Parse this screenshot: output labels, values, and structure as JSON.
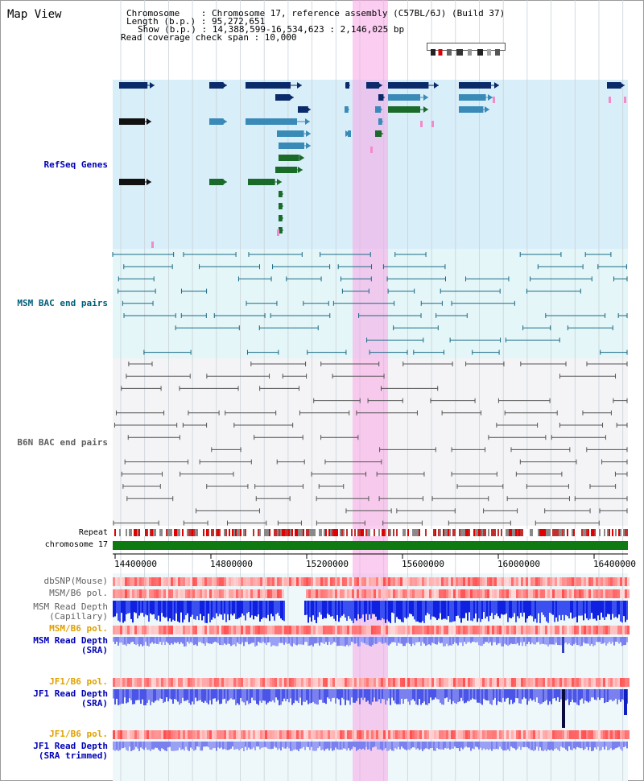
{
  "title": "Map View",
  "info": {
    "chromosome": "Chromosome    : Chromosome 17, reference assembly (C57BL/6J) (Build 37)",
    "length": "Length (b.p.) : 95,272,651",
    "show": "Show (b.p.) : 14,388,599-16,534,623 : 2,146,025 bp",
    "span": "Read coverage check span : 10,000"
  },
  "tracks": {
    "refseq": "RefSeq Genes",
    "msm_bac": "MSM BAC end pairs",
    "b6n_bac": "B6N BAC end pairs",
    "repeat": "Repeat",
    "chromosome": "chromosome 17",
    "dbsnp": "dbSNP(Mouse)",
    "msm_pol": "MSM/B6 pol.",
    "msm_depth_cap": "MSM Read Depth\n(Capillary)",
    "msm_pol2": "MSM/B6 pol.",
    "msm_depth_sra": "MSM Read Depth\n(SRA)",
    "jf1_pol": "JF1/B6 pol.",
    "jf1_depth_sra": "JF1 Read Depth\n(SRA)",
    "jf1_pol2": "JF1/B6 pol.",
    "jf1_depth_trim": "JF1 Read Depth\n(SRA trimmed)"
  },
  "axis": {
    "ticks": [
      "14400000",
      "14800000",
      "15200000",
      "15600000",
      "16000000",
      "16400000"
    ]
  },
  "colors": {
    "refseq_bg": "#d8eef9",
    "msm_bg": "#e6f7f8",
    "b6n_bg": "#f4f4f7",
    "highlight": "#f7a5e6",
    "label_blue": "#0000b8",
    "label_teal": "#00607a",
    "label_orange": "#e0a000",
    "label_gray": "#606060"
  }
}
